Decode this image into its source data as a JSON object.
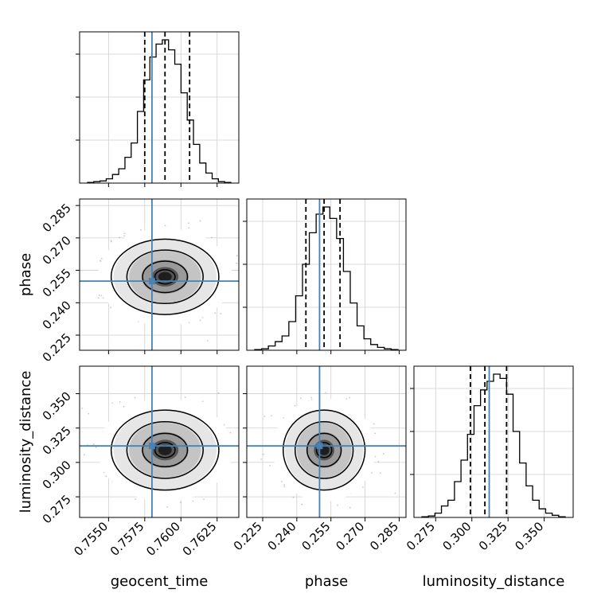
{
  "chart_data": {
    "type": "corner",
    "parameters": [
      "geocent_time",
      "phase",
      "luminosity_distance"
    ],
    "truths": {
      "geocent_time": 0.758,
      "phase": 0.25,
      "luminosity_distance": 0.312
    },
    "quantiles": {
      "geocent_time": [
        0.7575,
        0.7589,
        0.7606
      ],
      "phase": [
        0.244,
        0.252,
        0.259
      ],
      "luminosity_distance": [
        0.299,
        0.309,
        0.324
      ]
    },
    "ranges": {
      "geocent_time": [
        0.753,
        0.764
      ],
      "phase": [
        0.218,
        0.288
      ],
      "luminosity_distance": [
        0.26,
        0.37
      ]
    },
    "ticks": {
      "geocent_time": [
        "0.7550",
        "0.7575",
        "0.7600",
        "0.7625"
      ],
      "phase": [
        "0.225",
        "0.240",
        "0.255",
        "0.270",
        "0.285"
      ],
      "luminosity_distance": [
        "0.275",
        "0.300",
        "0.325",
        "0.350"
      ]
    },
    "histograms": {
      "geocent_time": [
        0.005,
        0.01,
        0.015,
        0.03,
        0.06,
        0.1,
        0.18,
        0.28,
        0.5,
        0.72,
        0.88,
        0.97,
        1.0,
        0.93,
        0.83,
        0.63,
        0.44,
        0.27,
        0.14,
        0.07,
        0.03,
        0.01,
        0.005
      ],
      "phase": [
        0.005,
        0.01,
        0.03,
        0.06,
        0.1,
        0.2,
        0.38,
        0.6,
        0.82,
        0.95,
        1.0,
        0.92,
        0.78,
        0.55,
        0.33,
        0.17,
        0.08,
        0.04,
        0.02,
        0.01,
        0.005
      ],
      "luminosity_distance": [
        0.005,
        0.01,
        0.03,
        0.08,
        0.12,
        0.25,
        0.4,
        0.58,
        0.78,
        0.89,
        0.95,
        1.0,
        0.97,
        0.86,
        0.6,
        0.38,
        0.22,
        0.12,
        0.06,
        0.03,
        0.015,
        0.005
      ]
    },
    "grid": true,
    "truth_color": "#4682b4"
  }
}
